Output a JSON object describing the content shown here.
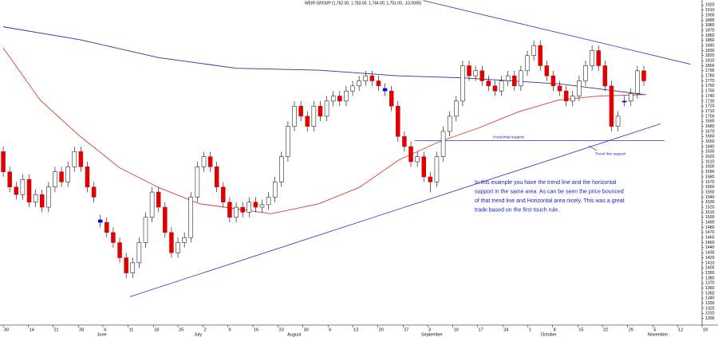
{
  "chart_data": {
    "type": "candlestick",
    "title": "WEIR GROUP (1,762.00, 1,783.00, 1,744.00, 1,751.00, -10.0000)",
    "open": [
      1630,
      1590,
      1560,
      1545,
      1575,
      1530,
      1545,
      1520,
      1560,
      1590,
      1570,
      1600,
      1630,
      1600,
      1560,
      1495,
      1490,
      1470,
      1450,
      1420,
      1390,
      1410,
      1450,
      1500,
      1550,
      1520,
      1470,
      1430,
      1450,
      1460,
      1540,
      1600,
      1620,
      1600,
      1560,
      1530,
      1500,
      1520,
      1510,
      1530,
      1520,
      1525,
      1540,
      1570,
      1620,
      1680,
      1720,
      1700,
      1680,
      1720,
      1700,
      1730,
      1740,
      1730,
      1750,
      1760,
      1770,
      1780,
      1770,
      1755,
      1750,
      1720,
      1660,
      1640,
      1610,
      1620,
      1580,
      1570,
      1620,
      1670,
      1700,
      1730,
      1800,
      1780,
      1790,
      1770,
      1760,
      1750,
      1770,
      1780,
      1760,
      1790,
      1820,
      1840,
      1800,
      1780,
      1760,
      1750,
      1730,
      1740,
      1770,
      1800,
      1830,
      1800,
      1760,
      1680,
      1728,
      1730,
      1745,
      1790
    ],
    "high": [
      1640,
      1600,
      1570,
      1585,
      1585,
      1555,
      1555,
      1570,
      1600,
      1600,
      1610,
      1640,
      1640,
      1610,
      1570,
      1505,
      1500,
      1480,
      1460,
      1430,
      1420,
      1460,
      1510,
      1560,
      1560,
      1530,
      1480,
      1460,
      1470,
      1550,
      1610,
      1630,
      1630,
      1610,
      1570,
      1540,
      1530,
      1530,
      1540,
      1540,
      1535,
      1550,
      1580,
      1630,
      1690,
      1730,
      1730,
      1710,
      1730,
      1730,
      1740,
      1750,
      1750,
      1760,
      1770,
      1780,
      1790,
      1790,
      1780,
      1765,
      1760,
      1730,
      1670,
      1650,
      1630,
      1630,
      1590,
      1630,
      1680,
      1710,
      1740,
      1810,
      1810,
      1800,
      1800,
      1780,
      1770,
      1780,
      1790,
      1790,
      1800,
      1830,
      1850,
      1850,
      1810,
      1790,
      1770,
      1760,
      1750,
      1780,
      1810,
      1840,
      1840,
      1810,
      1770,
      1710,
      1740,
      1755,
      1800,
      1800
    ],
    "low": [
      1580,
      1550,
      1535,
      1535,
      1520,
      1520,
      1510,
      1510,
      1550,
      1560,
      1560,
      1590,
      1590,
      1550,
      1530,
      1480,
      1460,
      1440,
      1410,
      1380,
      1380,
      1400,
      1440,
      1490,
      1510,
      1460,
      1420,
      1420,
      1440,
      1450,
      1530,
      1590,
      1590,
      1550,
      1520,
      1490,
      1490,
      1500,
      1500,
      1510,
      1510,
      1515,
      1530,
      1560,
      1610,
      1670,
      1690,
      1670,
      1670,
      1690,
      1690,
      1720,
      1720,
      1720,
      1740,
      1750,
      1760,
      1760,
      1750,
      1740,
      1710,
      1650,
      1630,
      1600,
      1600,
      1570,
      1550,
      1560,
      1610,
      1660,
      1690,
      1720,
      1770,
      1770,
      1760,
      1750,
      1740,
      1740,
      1760,
      1750,
      1750,
      1780,
      1810,
      1790,
      1770,
      1750,
      1740,
      1720,
      1720,
      1730,
      1760,
      1790,
      1790,
      1750,
      1670,
      1670,
      1720,
      1720,
      1735,
      1760
    ],
    "close": [
      1590,
      1560,
      1545,
      1575,
      1530,
      1545,
      1520,
      1560,
      1590,
      1570,
      1600,
      1630,
      1600,
      1560,
      1540,
      1490,
      1470,
      1450,
      1420,
      1390,
      1410,
      1450,
      1500,
      1550,
      1520,
      1470,
      1430,
      1450,
      1460,
      1540,
      1600,
      1620,
      1600,
      1560,
      1530,
      1500,
      1520,
      1510,
      1530,
      1520,
      1525,
      1540,
      1570,
      1620,
      1680,
      1720,
      1700,
      1680,
      1720,
      1700,
      1730,
      1740,
      1730,
      1750,
      1760,
      1770,
      1780,
      1770,
      1760,
      1750,
      1720,
      1660,
      1640,
      1610,
      1620,
      1580,
      1570,
      1620,
      1670,
      1700,
      1730,
      1800,
      1780,
      1790,
      1770,
      1760,
      1750,
      1770,
      1780,
      1760,
      1790,
      1820,
      1840,
      1800,
      1780,
      1760,
      1750,
      1730,
      1740,
      1770,
      1800,
      1830,
      1800,
      1760,
      1680,
      1700,
      1730,
      1745,
      1790,
      1770
    ],
    "up_color": "#ffffff",
    "down_color": "#e00000",
    "highlight_color": "#0000ee",
    "highlight": [
      15,
      59,
      96
    ],
    "lines": [
      {
        "color": "#3030a0",
        "x": [
          0,
          12,
          24,
          36,
          49,
          61,
          71,
          86,
          99
        ],
        "values": [
          1877,
          1851,
          1816,
          1795,
          1791,
          1780,
          1776,
          1764,
          1743
        ]
      },
      {
        "color": "#d04030",
        "x": [
          0,
          5.7,
          11.8,
          18,
          24,
          30.3,
          36.5,
          41.4,
          48.8,
          55,
          61.2,
          67.3,
          73.5,
          79.7,
          85.8,
          92,
          99.4
        ],
        "values": [
          1835,
          1732,
          1661,
          1598,
          1559,
          1527,
          1516,
          1507,
          1527,
          1559,
          1614,
          1649,
          1677,
          1709,
          1732,
          1740,
          1743
        ]
      }
    ],
    "trendlines": [
      {
        "color": "#3030c0",
        "x": [
          64.9,
          106.2
        ],
        "values": [
          1929,
          1803
        ]
      },
      {
        "color": "#3030c0",
        "x": [
          19.6,
          101.6
        ],
        "values": [
          1343,
          1685
        ]
      },
      {
        "color": "#3030c0",
        "x": [
          63.6,
          102.2
        ],
        "values": [
          1652,
          1652
        ]
      }
    ],
    "annotations": [
      "Horizontal support",
      "Trend line support"
    ],
    "note": [
      "In this example you have the trend line and the horizontal",
      "support in the same area. As can be seen the price bounced",
      "of that trend line and Horizontal area nicely. This was a great",
      "trade based on the first touch rule."
    ],
    "ylim": [
      1290,
      1930
    ],
    "yticks": [
      1300,
      1310,
      1320,
      1330,
      1340,
      1350,
      1360,
      1370,
      1380,
      1390,
      1400,
      1410,
      1420,
      1430,
      1440,
      1450,
      1460,
      1470,
      1480,
      1490,
      1500,
      1510,
      1520,
      1530,
      1540,
      1550,
      1560,
      1570,
      1580,
      1590,
      1600,
      1610,
      1620,
      1630,
      1640,
      1650,
      1660,
      1670,
      1680,
      1690,
      1700,
      1710,
      1720,
      1730,
      1740,
      1750,
      1760,
      1770,
      1780,
      1790,
      1800,
      1810,
      1820,
      1830,
      1840,
      1850,
      1860,
      1870,
      1880,
      1890,
      1900,
      1910,
      1920
    ],
    "xlim": [
      -0.5,
      108
    ],
    "xticks": [
      {
        "value": 0,
        "label": "30"
      },
      {
        "value": 3.9,
        "label": "14"
      },
      {
        "value": 7.7,
        "label": "21"
      },
      {
        "value": 11.6,
        "label": "28"
      },
      {
        "value": 15.4,
        "label": "4"
      },
      {
        "value": 19.3,
        "label": "11"
      },
      {
        "value": 23.2,
        "label": "18"
      },
      {
        "value": 27,
        "label": "25"
      },
      {
        "value": 30.9,
        "label": "2"
      },
      {
        "value": 34.7,
        "label": "9"
      },
      {
        "value": 38.6,
        "label": "16"
      },
      {
        "value": 42.5,
        "label": "23"
      },
      {
        "value": 46.3,
        "label": "30"
      },
      {
        "value": 50.2,
        "label": "6"
      },
      {
        "value": 54,
        "label": "13"
      },
      {
        "value": 57.9,
        "label": "20"
      },
      {
        "value": 61.8,
        "label": "27"
      },
      {
        "value": 65.6,
        "label": "3"
      },
      {
        "value": 69.5,
        "label": "10"
      },
      {
        "value": 73.3,
        "label": "17"
      },
      {
        "value": 77.2,
        "label": "24"
      },
      {
        "value": 81.1,
        "label": "1"
      },
      {
        "value": 84.9,
        "label": "8"
      },
      {
        "value": 88.8,
        "label": "15"
      },
      {
        "value": 92.6,
        "label": "22"
      },
      {
        "value": 96.5,
        "label": "29"
      },
      {
        "value": 100.4,
        "label": "5"
      },
      {
        "value": 104.2,
        "label": "12"
      },
      {
        "value": 108,
        "label": "19"
      }
    ],
    "month_ticks": [
      {
        "value": 14.5,
        "label": "June"
      },
      {
        "value": 29.5,
        "label": "July"
      },
      {
        "value": 43.9,
        "label": "August"
      },
      {
        "value": 64.6,
        "label": "September"
      },
      {
        "value": 83.1,
        "label": "October"
      },
      {
        "value": 99.6,
        "label": "November"
      }
    ]
  }
}
